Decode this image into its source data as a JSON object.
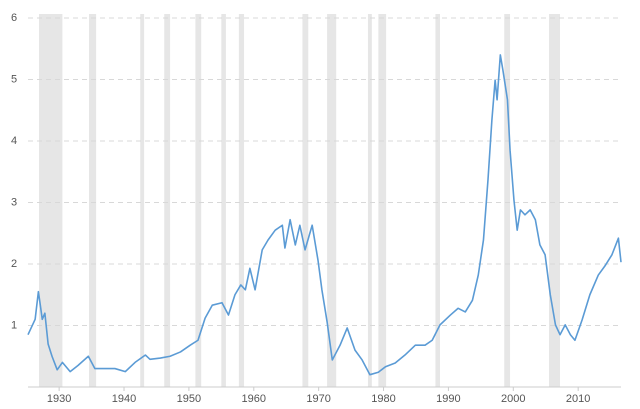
{
  "chart_data": {
    "type": "line",
    "x": [
      1925.2,
      1926.3,
      1926.8,
      1927.1,
      1927.4,
      1927.8,
      1928.3,
      1928.9,
      1929.7,
      1930.5,
      1931.7,
      1932.9,
      1934.5,
      1935.5,
      1937.1,
      1938.6,
      1940.2,
      1941.7,
      1943.3,
      1944.0,
      1945.6,
      1947.1,
      1948.7,
      1950.2,
      1951.4,
      1952.5,
      1953.6,
      1955.1,
      1956.1,
      1957.1,
      1958.0,
      1958.7,
      1959.4,
      1960.2,
      1961.3,
      1962.2,
      1963.3,
      1964.4,
      1964.8,
      1965.6,
      1966.4,
      1967.1,
      1967.9,
      1969.0,
      1969.9,
      1970.5,
      1971.3,
      1972.1,
      1973.3,
      1974.4,
      1975.6,
      1976.7,
      1977.9,
      1979.2,
      1980.3,
      1981.8,
      1983.3,
      1984.9,
      1986.4,
      1987.5,
      1988.7,
      1990.3,
      1991.5,
      1992.6,
      1993.7,
      1994.6,
      1995.4,
      1996.1,
      1996.7,
      1997.2,
      1997.5,
      1998.0,
      1998.4,
      1999.1,
      1999.5,
      2000.1,
      2000.6,
      2001.1,
      2001.8,
      2002.6,
      2003.4,
      2004.1,
      2004.9,
      2005.7,
      2006.5,
      2007.2,
      2008.0,
      2008.8,
      2009.5,
      2010.6,
      2011.8,
      2013.1,
      2014.2,
      2015.2,
      2016.2,
      2016.6
    ],
    "series": [
      {
        "color": "#5b9bd5",
        "values": [
          0.85,
          1.1,
          1.55,
          1.33,
          1.1,
          1.2,
          0.7,
          0.5,
          0.28,
          0.4,
          0.25,
          0.35,
          0.5,
          0.3,
          0.3,
          0.3,
          0.25,
          0.4,
          0.52,
          0.45,
          0.47,
          0.5,
          0.57,
          0.68,
          0.76,
          1.12,
          1.33,
          1.37,
          1.17,
          1.5,
          1.66,
          1.58,
          1.93,
          1.58,
          2.23,
          2.39,
          2.55,
          2.63,
          2.26,
          2.72,
          2.31,
          2.63,
          2.23,
          2.63,
          2.06,
          1.58,
          1.06,
          0.44,
          0.68,
          0.96,
          0.6,
          0.44,
          0.2,
          0.24,
          0.33,
          0.39,
          0.52,
          0.68,
          0.68,
          0.76,
          1.01,
          1.17,
          1.28,
          1.22,
          1.41,
          1.82,
          2.39,
          3.37,
          4.34,
          4.99,
          4.67,
          5.4,
          5.15,
          4.67,
          3.85,
          3.04,
          2.55,
          2.88,
          2.8,
          2.88,
          2.72,
          2.31,
          2.15,
          1.5,
          1.01,
          0.85,
          1.01,
          0.85,
          0.76,
          1.09,
          1.5,
          1.82,
          1.98,
          2.15,
          2.42,
          2.03
        ]
      }
    ],
    "recessions": [
      [
        1926.9,
        1930.5
      ],
      [
        1934.6,
        1935.7
      ],
      [
        1942.5,
        1943.1
      ],
      [
        1946.2,
        1947.1
      ],
      [
        1951.0,
        1951.9
      ],
      [
        1955.0,
        1955.7
      ],
      [
        1957.7,
        1958.5
      ],
      [
        1967.5,
        1968.4
      ],
      [
        1971.3,
        1972.7
      ],
      [
        1977.6,
        1978.2
      ],
      [
        1979.2,
        1980.4
      ],
      [
        1988.0,
        1988.7
      ],
      [
        1998.6,
        1999.5
      ],
      [
        2005.5,
        2007.2
      ]
    ],
    "recession_color": "#e6e6e6",
    "xlim": [
      1925.2,
      2016.6
    ],
    "xticks": [
      1930,
      1940,
      1950,
      1960,
      1970,
      1980,
      1990,
      2000,
      2010
    ],
    "ylim": [
      0,
      6
    ],
    "yticks": [
      1,
      2,
      3,
      4,
      5,
      6
    ],
    "grid": true
  }
}
